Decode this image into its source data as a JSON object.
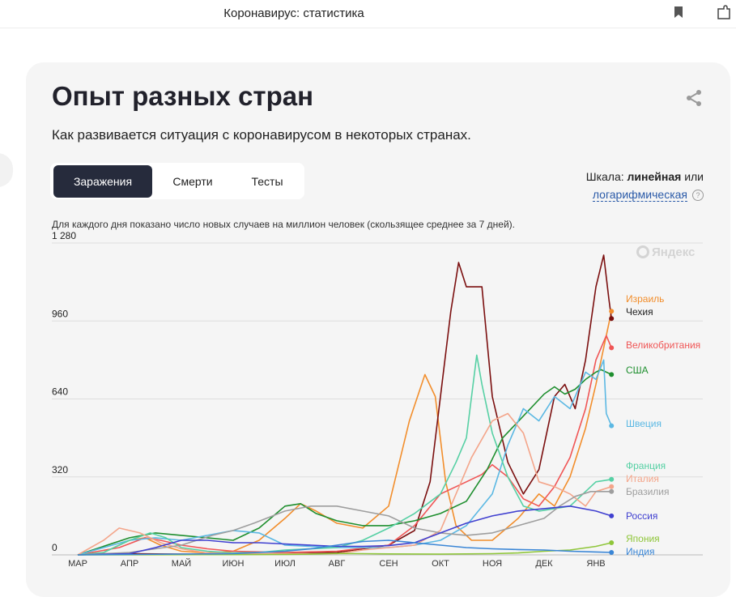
{
  "browser": {
    "title": "Коронавирус: статистика"
  },
  "card": {
    "title": "Опыт разных стран",
    "subtitle": "Как развивается ситуация с коронавирусом в некоторых странах.",
    "tabs": [
      {
        "label": "Заражения",
        "active": true
      },
      {
        "label": "Смерти",
        "active": false
      },
      {
        "label": "Тесты",
        "active": false
      }
    ],
    "scale": {
      "prefix": "Шкала:",
      "current": "линейная",
      "or": "или",
      "alternative": "логарифмическая",
      "help": "?"
    },
    "note": "Для каждого дня показано число новых случаев на миллион человек (скользящее среднее за 7 дней).",
    "watermark": "Яндекс"
  },
  "chart_data": {
    "type": "line",
    "y_ticks": [
      0,
      320,
      640,
      960,
      1280
    ],
    "y_tick_labels": [
      "0",
      "320",
      "640",
      "960",
      "1 280"
    ],
    "ylim": [
      0,
      1280
    ],
    "grid": true,
    "x_ticks": [
      "МАР",
      "АПР",
      "МАЙ",
      "ИЮН",
      "ИЮЛ",
      "АВГ",
      "СЕН",
      "ОКТ",
      "НОЯ",
      "ДЕК",
      "ЯНВ"
    ],
    "x_tick_months": [
      0,
      1,
      2,
      3,
      4,
      5,
      6,
      7,
      8,
      9,
      10
    ],
    "x_unit": "months since 1 March 2020",
    "series": [
      {
        "name": "Израиль",
        "color": "#f28e2c",
        "points": [
          [
            0,
            0
          ],
          [
            0.5,
            10
          ],
          [
            1,
            60
          ],
          [
            1.3,
            70
          ],
          [
            1.6,
            40
          ],
          [
            2,
            15
          ],
          [
            2.5,
            8
          ],
          [
            3,
            15
          ],
          [
            3.5,
            60
          ],
          [
            4,
            150
          ],
          [
            4.3,
            210
          ],
          [
            4.6,
            180
          ],
          [
            5,
            130
          ],
          [
            5.5,
            110
          ],
          [
            6,
            200
          ],
          [
            6.4,
            550
          ],
          [
            6.7,
            740
          ],
          [
            6.9,
            650
          ],
          [
            7.1,
            300
          ],
          [
            7.3,
            120
          ],
          [
            7.6,
            60
          ],
          [
            8,
            60
          ],
          [
            8.5,
            150
          ],
          [
            8.9,
            250
          ],
          [
            9.2,
            200
          ],
          [
            9.5,
            320
          ],
          [
            9.8,
            520
          ],
          [
            10,
            700
          ],
          [
            10.2,
            900
          ],
          [
            10.3,
            1000
          ]
        ]
      },
      {
        "name": "Чехия",
        "color": "#7b0f0f",
        "points": [
          [
            0,
            0
          ],
          [
            1,
            5
          ],
          [
            2,
            3
          ],
          [
            3,
            3
          ],
          [
            4,
            5
          ],
          [
            5,
            10
          ],
          [
            6,
            40
          ],
          [
            6.5,
            100
          ],
          [
            6.8,
            300
          ],
          [
            7,
            650
          ],
          [
            7.2,
            1000
          ],
          [
            7.35,
            1200
          ],
          [
            7.5,
            1100
          ],
          [
            7.8,
            1100
          ],
          [
            8,
            650
          ],
          [
            8.3,
            380
          ],
          [
            8.6,
            250
          ],
          [
            8.9,
            350
          ],
          [
            9.2,
            650
          ],
          [
            9.4,
            700
          ],
          [
            9.6,
            600
          ],
          [
            9.8,
            800
          ],
          [
            10,
            1100
          ],
          [
            10.15,
            1230
          ],
          [
            10.25,
            1050
          ],
          [
            10.3,
            970
          ]
        ]
      },
      {
        "name": "Великобритания",
        "color": "#f05555",
        "points": [
          [
            0,
            0
          ],
          [
            0.8,
            30
          ],
          [
            1.3,
            70
          ],
          [
            1.6,
            60
          ],
          [
            2,
            40
          ],
          [
            2.5,
            25
          ],
          [
            3,
            15
          ],
          [
            4,
            10
          ],
          [
            5,
            15
          ],
          [
            6,
            40
          ],
          [
            6.5,
            120
          ],
          [
            7,
            250
          ],
          [
            7.5,
            300
          ],
          [
            7.8,
            330
          ],
          [
            8,
            370
          ],
          [
            8.3,
            320
          ],
          [
            8.6,
            230
          ],
          [
            8.9,
            200
          ],
          [
            9.2,
            280
          ],
          [
            9.5,
            400
          ],
          [
            9.8,
            600
          ],
          [
            10,
            800
          ],
          [
            10.2,
            900
          ],
          [
            10.3,
            850
          ]
        ]
      },
      {
        "name": "США",
        "color": "#1f8f2f",
        "points": [
          [
            0,
            0
          ],
          [
            1,
            70
          ],
          [
            1.5,
            90
          ],
          [
            2,
            80
          ],
          [
            2.5,
            70
          ],
          [
            3,
            60
          ],
          [
            3.5,
            110
          ],
          [
            4,
            200
          ],
          [
            4.3,
            210
          ],
          [
            4.6,
            170
          ],
          [
            5,
            140
          ],
          [
            5.5,
            120
          ],
          [
            6,
            120
          ],
          [
            6.5,
            140
          ],
          [
            7,
            170
          ],
          [
            7.5,
            220
          ],
          [
            7.9,
            350
          ],
          [
            8.2,
            480
          ],
          [
            8.6,
            570
          ],
          [
            9,
            660
          ],
          [
            9.2,
            690
          ],
          [
            9.4,
            660
          ],
          [
            9.6,
            680
          ],
          [
            9.8,
            720
          ],
          [
            10,
            750
          ],
          [
            10.1,
            760
          ],
          [
            10.3,
            740
          ]
        ]
      },
      {
        "name": "Швеция",
        "color": "#5bb8e3",
        "points": [
          [
            0,
            0
          ],
          [
            1,
            60
          ],
          [
            1.5,
            70
          ],
          [
            2,
            60
          ],
          [
            2.5,
            80
          ],
          [
            3,
            100
          ],
          [
            3.5,
            90
          ],
          [
            4,
            40
          ],
          [
            5,
            30
          ],
          [
            6,
            30
          ],
          [
            6.5,
            40
          ],
          [
            7,
            60
          ],
          [
            7.5,
            120
          ],
          [
            8,
            250
          ],
          [
            8.3,
            450
          ],
          [
            8.6,
            600
          ],
          [
            8.9,
            550
          ],
          [
            9.2,
            650
          ],
          [
            9.5,
            600
          ],
          [
            9.8,
            750
          ],
          [
            10,
            720
          ],
          [
            10.15,
            800
          ],
          [
            10.2,
            580
          ],
          [
            10.3,
            530
          ]
        ]
      },
      {
        "name": "Франция",
        "color": "#56d0a4",
        "points": [
          [
            0,
            0
          ],
          [
            0.5,
            10
          ],
          [
            1,
            60
          ],
          [
            1.4,
            90
          ],
          [
            1.7,
            70
          ],
          [
            2,
            30
          ],
          [
            2.5,
            15
          ],
          [
            3,
            8
          ],
          [
            3.5,
            10
          ],
          [
            4,
            20
          ],
          [
            5,
            30
          ],
          [
            5.5,
            60
          ],
          [
            6,
            110
          ],
          [
            6.5,
            170
          ],
          [
            7,
            250
          ],
          [
            7.3,
            380
          ],
          [
            7.5,
            480
          ],
          [
            7.7,
            820
          ],
          [
            7.8,
            700
          ],
          [
            8,
            500
          ],
          [
            8.3,
            320
          ],
          [
            8.6,
            200
          ],
          [
            8.9,
            180
          ],
          [
            9.2,
            190
          ],
          [
            9.5,
            200
          ],
          [
            9.8,
            260
          ],
          [
            10,
            300
          ],
          [
            10.3,
            310
          ]
        ]
      },
      {
        "name": "Италия",
        "color": "#f4a58a",
        "points": [
          [
            0,
            0
          ],
          [
            0.5,
            60
          ],
          [
            0.8,
            110
          ],
          [
            1.2,
            90
          ],
          [
            1.6,
            50
          ],
          [
            2,
            25
          ],
          [
            2.5,
            8
          ],
          [
            3,
            5
          ],
          [
            4,
            5
          ],
          [
            5,
            5
          ],
          [
            5.5,
            20
          ],
          [
            6,
            30
          ],
          [
            6.5,
            40
          ],
          [
            7,
            100
          ],
          [
            7.3,
            250
          ],
          [
            7.6,
            400
          ],
          [
            8,
            550
          ],
          [
            8.3,
            580
          ],
          [
            8.6,
            500
          ],
          [
            8.9,
            300
          ],
          [
            9.2,
            280
          ],
          [
            9.5,
            250
          ],
          [
            9.8,
            200
          ],
          [
            10,
            260
          ],
          [
            10.3,
            280
          ]
        ]
      },
      {
        "name": "Бразилия",
        "color": "#9e9e9e",
        "points": [
          [
            0,
            0
          ],
          [
            1,
            10
          ],
          [
            2,
            40
          ],
          [
            2.6,
            80
          ],
          [
            3,
            100
          ],
          [
            3.4,
            130
          ],
          [
            4,
            180
          ],
          [
            4.5,
            200
          ],
          [
            5,
            200
          ],
          [
            5.5,
            180
          ],
          [
            6,
            160
          ],
          [
            6.5,
            110
          ],
          [
            7,
            90
          ],
          [
            7.5,
            80
          ],
          [
            8,
            90
          ],
          [
            8.5,
            120
          ],
          [
            9,
            150
          ],
          [
            9.3,
            200
          ],
          [
            9.6,
            240
          ],
          [
            9.9,
            260
          ],
          [
            10.3,
            260
          ]
        ]
      },
      {
        "name": "Россия",
        "color": "#4040d0",
        "points": [
          [
            0,
            0
          ],
          [
            1,
            5
          ],
          [
            1.5,
            30
          ],
          [
            2,
            60
          ],
          [
            2.5,
            60
          ],
          [
            3,
            50
          ],
          [
            3.5,
            50
          ],
          [
            4,
            45
          ],
          [
            4.5,
            40
          ],
          [
            5,
            35
          ],
          [
            5.5,
            35
          ],
          [
            6,
            38
          ],
          [
            6.5,
            50
          ],
          [
            7,
            90
          ],
          [
            7.5,
            130
          ],
          [
            8,
            160
          ],
          [
            8.5,
            180
          ],
          [
            9,
            190
          ],
          [
            9.5,
            200
          ],
          [
            10,
            180
          ],
          [
            10.3,
            160
          ]
        ]
      },
      {
        "name": "Япония",
        "color": "#8fc63a",
        "points": [
          [
            0,
            0
          ],
          [
            3,
            1
          ],
          [
            4,
            2
          ],
          [
            4.5,
            3
          ],
          [
            5,
            6
          ],
          [
            5.5,
            5
          ],
          [
            6,
            4
          ],
          [
            7,
            3
          ],
          [
            8,
            5
          ],
          [
            8.5,
            8
          ],
          [
            9,
            15
          ],
          [
            9.5,
            20
          ],
          [
            10,
            35
          ],
          [
            10.2,
            45
          ],
          [
            10.3,
            50
          ]
        ]
      },
      {
        "name": "Индия",
        "color": "#3a86d6",
        "points": [
          [
            0,
            0
          ],
          [
            3,
            5
          ],
          [
            4,
            15
          ],
          [
            4.5,
            25
          ],
          [
            5,
            40
          ],
          [
            5.5,
            55
          ],
          [
            6,
            60
          ],
          [
            6.5,
            50
          ],
          [
            7,
            40
          ],
          [
            7.5,
            30
          ],
          [
            8,
            25
          ],
          [
            8.5,
            22
          ],
          [
            9,
            20
          ],
          [
            9.5,
            15
          ],
          [
            10,
            12
          ],
          [
            10.3,
            10
          ]
        ]
      }
    ],
    "end_labels": [
      {
        "text": "Израиль"
      },
      {
        "text": "Чехия"
      },
      {
        "text": "Великобритания"
      },
      {
        "text": "США"
      },
      {
        "text": "Швеция"
      },
      {
        "text": "Франция"
      },
      {
        "text": "Италия"
      },
      {
        "text": "Бразилия"
      },
      {
        "text": "Россия"
      },
      {
        "text": "Япония"
      },
      {
        "text": "Индия"
      }
    ]
  }
}
